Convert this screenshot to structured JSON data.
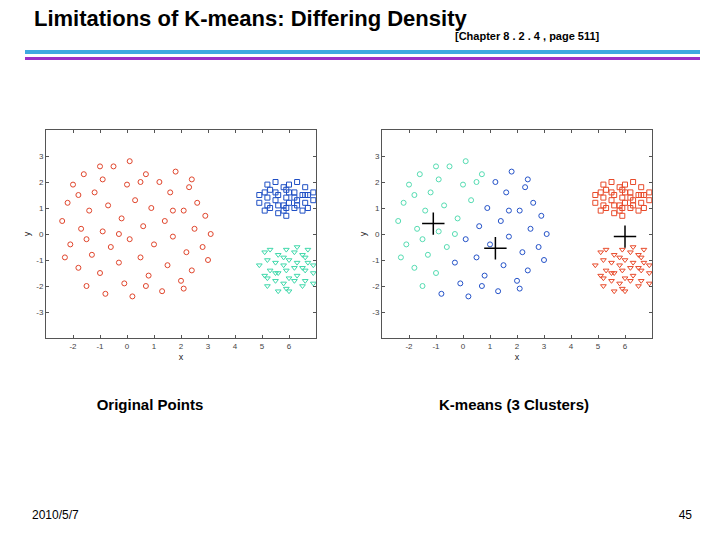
{
  "slide": {
    "title": "Limitations of K-means: Differing Density",
    "subtitle": "[Chapter 8 . 2 . 4 , page 511]",
    "date": "2010/5/7",
    "page": 45
  },
  "chart_data": [
    {
      "type": "scatter",
      "title": "Original Points",
      "xlabel": "x",
      "ylabel": "y",
      "xlim": [
        -3,
        7
      ],
      "xticks": [
        -2,
        -1,
        0,
        1,
        2,
        3,
        4,
        5,
        6
      ],
      "ylim": [
        -4,
        4
      ],
      "yticks": [
        -3,
        -2,
        -1,
        0,
        1,
        2,
        3
      ],
      "grid": false,
      "series": [
        {
          "color": "#e0452c",
          "marker": "circle",
          "x": [
            -2.4,
            -2.2,
            -2.1,
            -2.0,
            -1.8,
            -1.7,
            -1.6,
            -1.5,
            -1.4,
            -1.3,
            -1.2,
            -1.0,
            -0.9,
            -0.9,
            -0.7,
            -0.6,
            -0.5,
            -0.2,
            0.0,
            0.1,
            0.3,
            0.7,
            -2.3,
            -1.5,
            -0.3,
            -1.0,
            0.5,
            -1.8,
            -0.8,
            -0.3,
            -0.1,
            0.1,
            0.2,
            0.5,
            0.6,
            0.8,
            0.9,
            1.0,
            1.2,
            1.3,
            1.4,
            1.5,
            1.6,
            1.7,
            1.8,
            2.0,
            2.1,
            2.2,
            2.3,
            2.4,
            2.5,
            2.6,
            2.8,
            2.9,
            3.0,
            3.1,
            0.7,
            1.7,
            2.4,
            2.1
          ],
          "y": [
            0.5,
            1.2,
            -0.4,
            1.9,
            -1.3,
            0.2,
            2.3,
            -2.0,
            0.9,
            -0.8,
            1.6,
            -1.5,
            2.1,
            0.1,
            1.1,
            -0.5,
            2.6,
            0.6,
            1.9,
            2.8,
            1.3,
            2.3,
            -0.9,
            -0.2,
            0.0,
            2.6,
            2.0,
            1.5,
            -2.3,
            -1.1,
            -1.9,
            -0.2,
            -2.4,
            -0.9,
            0.3,
            -1.6,
            1.0,
            -0.4,
            2.0,
            -2.2,
            0.5,
            -1.2,
            1.6,
            -0.1,
            2.4,
            -1.8,
            0.9,
            -0.7,
            1.8,
            -1.4,
            0.2,
            1.2,
            -0.5,
            0.7,
            -1.0,
            0.0,
            -2.0,
            0.9,
            2.1,
            -2.1
          ]
        },
        {
          "color": "#1f4fc4",
          "marker": "square",
          "x": [
            4.9,
            5.1,
            5.1,
            5.2,
            5.2,
            5.3,
            5.3,
            5.5,
            5.5,
            5.6,
            5.6,
            5.8,
            5.8,
            5.9,
            5.9,
            6.0,
            6.0,
            6.2,
            6.2,
            6.3,
            6.3,
            6.5,
            6.5,
            6.6,
            6.6,
            6.7,
            6.7,
            6.9,
            5.6,
            5.9,
            5.2,
            6.2,
            5.8,
            6.0,
            6.3,
            6.6,
            5.5,
            5.9,
            4.9,
            6.9
          ],
          "y": [
            1.2,
            1.6,
            0.9,
            1.9,
            1.4,
            1.0,
            1.7,
            1.3,
            2.0,
            0.8,
            1.5,
            1.1,
            1.8,
            1.4,
            0.7,
            1.2,
            1.9,
            1.0,
            1.6,
            1.3,
            2.0,
            0.9,
            1.5,
            1.2,
            1.8,
            1.0,
            1.5,
            1.3,
            1.1,
            1.7,
            1.1,
            1.4,
            0.9,
            1.6,
            1.1,
            1.5,
            1.6,
            1.0,
            1.5,
            1.6
          ]
        },
        {
          "color": "#3ed8aa",
          "marker": "triangle-down",
          "x": [
            4.9,
            5.1,
            5.1,
            5.2,
            5.2,
            5.3,
            5.3,
            5.5,
            5.5,
            5.6,
            5.6,
            5.6,
            5.8,
            5.8,
            5.9,
            5.9,
            6.0,
            6.0,
            6.0,
            6.2,
            6.2,
            6.3,
            6.3,
            6.5,
            6.5,
            6.6,
            6.6,
            6.7,
            6.7,
            6.9,
            6.9,
            5.8,
            5.9,
            6.2,
            6.5,
            6.9,
            5.5,
            6.3,
            5.2,
            6.6
          ],
          "y": [
            -1.2,
            -0.7,
            -1.6,
            -1.0,
            -2.0,
            -0.6,
            -1.4,
            -1.1,
            -1.8,
            -0.8,
            -1.5,
            -2.2,
            -1.2,
            -1.9,
            -0.6,
            -1.4,
            -1.0,
            -1.7,
            -2.2,
            -1.3,
            -0.7,
            -1.6,
            -1.1,
            -2.0,
            -0.8,
            -1.4,
            -1.8,
            -1.1,
            -0.6,
            -1.5,
            -1.9,
            -0.9,
            -2.1,
            -1.8,
            -1.3,
            -1.2,
            -1.5,
            -0.5,
            -1.7,
            -0.9
          ]
        }
      ]
    },
    {
      "type": "scatter",
      "title": "K-means (3 Clusters)",
      "xlabel": "x",
      "ylabel": "y",
      "xlim": [
        -3,
        7
      ],
      "xticks": [
        -2,
        -1,
        0,
        1,
        2,
        3,
        4,
        5,
        6
      ],
      "ylim": [
        -4,
        4
      ],
      "yticks": [
        -3,
        -2,
        -1,
        0,
        1,
        2,
        3
      ],
      "grid": false,
      "series": [
        {
          "color": "#55dcb2",
          "marker": "circle",
          "x": [
            -2.4,
            -2.2,
            -2.1,
            -2.0,
            -1.8,
            -1.7,
            -1.6,
            -1.5,
            -1.4,
            -1.3,
            -1.2,
            -1.0,
            -0.9,
            -0.9,
            -0.7,
            -0.6,
            -0.5,
            -0.2,
            0.0,
            0.1,
            0.3,
            0.7,
            -2.3,
            -1.5,
            -0.3,
            -1.0,
            0.5,
            -1.8
          ],
          "y": [
            0.5,
            1.2,
            -0.4,
            1.9,
            -1.3,
            0.2,
            2.3,
            -2.0,
            0.9,
            -0.8,
            1.6,
            -1.5,
            2.1,
            0.1,
            1.1,
            -0.5,
            2.6,
            0.6,
            1.9,
            2.8,
            1.3,
            2.3,
            -0.9,
            -0.2,
            0.0,
            2.6,
            2.0,
            1.5
          ]
        },
        {
          "color": "#2452c8",
          "marker": "circle",
          "x": [
            -0.8,
            -0.3,
            -0.1,
            0.1,
            0.2,
            0.5,
            0.6,
            0.8,
            0.9,
            1.0,
            1.2,
            1.3,
            1.4,
            1.5,
            1.6,
            1.7,
            1.8,
            2.0,
            2.1,
            2.2,
            2.3,
            2.4,
            2.5,
            2.6,
            2.8,
            2.9,
            3.0,
            3.1,
            0.7,
            1.7,
            2.4,
            2.1
          ],
          "y": [
            -2.3,
            -1.1,
            -1.9,
            -0.2,
            -2.4,
            -0.9,
            0.3,
            -1.6,
            1.0,
            -0.4,
            2.0,
            -2.2,
            0.5,
            -1.2,
            1.6,
            -0.1,
            2.4,
            -1.8,
            0.9,
            -0.7,
            1.8,
            -1.4,
            0.2,
            1.2,
            -0.5,
            0.7,
            -1.0,
            0.0,
            -2.0,
            0.9,
            2.1,
            -2.1
          ]
        },
        {
          "color": "#e84a2a",
          "marker": "square",
          "x": [
            4.9,
            5.1,
            5.1,
            5.2,
            5.2,
            5.3,
            5.3,
            5.5,
            5.5,
            5.6,
            5.6,
            5.8,
            5.8,
            5.9,
            5.9,
            6.0,
            6.0,
            6.2,
            6.2,
            6.3,
            6.3,
            6.5,
            6.5,
            6.6,
            6.6,
            6.7,
            6.7,
            6.9,
            5.6,
            5.9,
            5.2,
            6.2,
            5.8,
            6.0,
            6.3,
            6.6,
            5.5,
            5.9,
            4.9,
            6.9
          ],
          "y": [
            1.2,
            1.6,
            0.9,
            1.9,
            1.4,
            1.0,
            1.7,
            1.3,
            2.0,
            0.8,
            1.5,
            1.1,
            1.8,
            1.4,
            0.7,
            1.2,
            1.9,
            1.0,
            1.6,
            1.3,
            2.0,
            0.9,
            1.5,
            1.2,
            1.8,
            1.0,
            1.5,
            1.3,
            1.1,
            1.7,
            1.1,
            1.4,
            0.9,
            1.6,
            1.1,
            1.5,
            1.6,
            1.0,
            1.5,
            1.6
          ]
        },
        {
          "color": "#e84a2a",
          "marker": "triangle-down",
          "x": [
            4.9,
            5.1,
            5.1,
            5.2,
            5.2,
            5.3,
            5.3,
            5.5,
            5.5,
            5.6,
            5.6,
            5.6,
            5.8,
            5.8,
            5.9,
            5.9,
            6.0,
            6.0,
            6.0,
            6.2,
            6.2,
            6.3,
            6.3,
            6.5,
            6.5,
            6.6,
            6.6,
            6.7,
            6.7,
            6.9,
            6.9,
            5.8,
            5.9,
            6.2,
            6.5,
            6.9,
            5.5,
            6.3,
            5.2,
            6.6
          ],
          "y": [
            -1.2,
            -0.7,
            -1.6,
            -1.0,
            -2.0,
            -0.6,
            -1.4,
            -1.1,
            -1.8,
            -0.8,
            -1.5,
            -2.2,
            -1.2,
            -1.9,
            -0.6,
            -1.4,
            -1.0,
            -1.7,
            -2.2,
            -1.3,
            -0.7,
            -1.6,
            -1.1,
            -2.0,
            -0.8,
            -1.4,
            -1.8,
            -1.1,
            -0.6,
            -1.5,
            -1.9,
            -0.9,
            -2.1,
            -1.8,
            -1.3,
            -1.2,
            -1.5,
            -0.5,
            -1.7,
            -0.9
          ]
        },
        {
          "color": "#000000",
          "marker": "plus",
          "x": [
            -1.1,
            1.2,
            6.0
          ],
          "y": [
            0.4,
            -0.55,
            -0.1
          ]
        }
      ]
    }
  ]
}
